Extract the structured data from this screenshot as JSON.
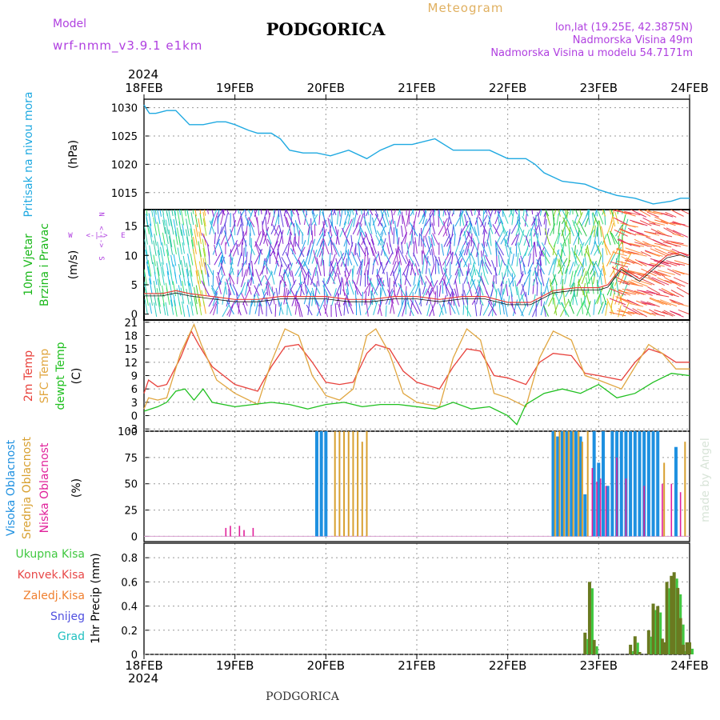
{
  "header": {
    "model_label": "Model",
    "model_name": "wrf-nmm_v3.9.1  e1km",
    "title": "PODGORICA",
    "meteogram": "Meteogram",
    "lonlat": "lon,lat (19.25E, 42.3875N)",
    "elevation": "Nadmorska Visina 49m",
    "model_elevation": "Nadmorska Visina u modelu 54.7171m",
    "year_top": "2024",
    "year_bottom": "2024",
    "footer": "PODGORICA",
    "watermark": "made by Angel"
  },
  "colors": {
    "pressure": "#1fa9e1",
    "wind_label": "#1bb81b",
    "temp2m": "#e8423c",
    "sfc": "#e0a640",
    "dew": "#20c020",
    "high_cloud": "#1e90e0",
    "mid_cloud": "#d8a030",
    "low_cloud": "#e0209a",
    "compass": "#b040e0",
    "total_rain": "#40c840",
    "conv_rain": "#e84848",
    "frz_rain": "#f08030",
    "snow": "#5050e0",
    "hail": "#20c0c0",
    "precip_bar": "#6a7a20"
  },
  "compass": {
    "n": "N",
    "s": "S",
    "w": "W",
    "e": "E",
    "arrows": "<-|->"
  },
  "chart_data": [
    {
      "type": "line",
      "panel": "pressure",
      "ylabel_left": "Pritisak na nivou mora",
      "ylabel_unit": "(hPa)",
      "ylim": [
        1012,
        1031.5
      ],
      "yticks": [
        1015,
        1020,
        1025,
        1030
      ],
      "xticks": [
        "18FEB",
        "19FEB",
        "20FEB",
        "21FEB",
        "22FEB",
        "23FEB",
        "24FEB"
      ],
      "x": [
        0,
        0.06,
        0.13,
        0.25,
        0.35,
        0.5,
        0.65,
        0.8,
        0.9,
        1.0,
        1.15,
        1.25,
        1.4,
        1.5,
        1.6,
        1.75,
        1.9,
        2.05,
        2.25,
        2.45,
        2.6,
        2.75,
        2.95,
        3.2,
        3.4,
        3.6,
        3.8,
        4.0,
        4.2,
        4.3,
        4.4,
        4.6,
        4.85,
        5.0,
        5.2,
        5.4,
        5.6,
        5.8,
        5.9,
        6.0
      ],
      "values": [
        1030.5,
        1029,
        1029,
        1029.5,
        1029.5,
        1027,
        1027,
        1027.5,
        1027.5,
        1027,
        1026,
        1025.5,
        1025.5,
        1024.5,
        1022.5,
        1022,
        1022,
        1021.5,
        1022.5,
        1021,
        1022.5,
        1023.5,
        1023.5,
        1024.5,
        1022.5,
        1022.5,
        1022.5,
        1021,
        1021,
        1020,
        1018.5,
        1017,
        1016.5,
        1015.5,
        1014.5,
        1014,
        1013,
        1013.5,
        1014,
        1014
      ]
    },
    {
      "type": "line",
      "panel": "wind",
      "ylabel_left": [
        "10m Vjetar",
        "Brzina i Pravac"
      ],
      "ylabel_unit": "(m/s)",
      "ylim": [
        -1,
        17.8
      ],
      "yticks": [
        0,
        5,
        10,
        15
      ],
      "x": [
        0,
        0.2,
        0.35,
        0.5,
        0.75,
        1.0,
        1.25,
        1.5,
        1.75,
        2.0,
        2.25,
        2.5,
        2.75,
        3.0,
        3.25,
        3.5,
        3.75,
        4.0,
        4.25,
        4.5,
        4.75,
        5.0,
        5.1,
        5.25,
        5.45,
        5.6,
        5.75,
        5.9,
        6.0
      ],
      "values": [
        3.5,
        3.5,
        4,
        3.5,
        3,
        2.5,
        2.5,
        3,
        3,
        3,
        2.5,
        2.5,
        3,
        3,
        2.5,
        3,
        3,
        2,
        2,
        4,
        4.5,
        4.5,
        5,
        8,
        6,
        8,
        10,
        10.5,
        10
      ]
    },
    {
      "type": "line",
      "panel": "temperature",
      "ylabel_left": [
        "2m Temp",
        "SFC Temp",
        "dewpt Temp"
      ],
      "ylabel_unit": "(C)",
      "ylim": [
        -3.5,
        21.5
      ],
      "yticks": [
        -3,
        0,
        3,
        6,
        9,
        12,
        15,
        18,
        21
      ],
      "series": [
        {
          "name": "2m Temp",
          "x": [
            0,
            0.05,
            0.15,
            0.25,
            0.4,
            0.52,
            0.6,
            0.75,
            1.0,
            1.25,
            1.4,
            1.55,
            1.7,
            1.85,
            2.0,
            2.15,
            2.3,
            2.45,
            2.55,
            2.7,
            2.85,
            3.0,
            3.25,
            3.4,
            3.55,
            3.7,
            3.85,
            4.0,
            4.2,
            4.35,
            4.5,
            4.7,
            4.85,
            5.0,
            5.25,
            5.4,
            5.55,
            5.7,
            5.85,
            6.0
          ],
          "values": [
            5,
            8,
            6.5,
            7,
            13,
            19,
            16,
            11,
            7,
            5.5,
            11,
            15.5,
            16,
            12,
            7.5,
            7,
            7.5,
            14,
            16,
            15,
            10,
            7.5,
            6,
            11,
            15,
            14.5,
            9,
            8.5,
            7,
            12,
            14,
            13.5,
            9.5,
            9,
            8,
            12,
            15,
            14,
            12,
            12
          ]
        },
        {
          "name": "SFC Temp",
          "x": [
            0,
            0.05,
            0.15,
            0.25,
            0.4,
            0.55,
            0.63,
            0.8,
            1.0,
            1.25,
            1.4,
            1.55,
            1.7,
            1.85,
            2.0,
            2.15,
            2.3,
            2.45,
            2.55,
            2.7,
            2.85,
            3.0,
            3.25,
            3.4,
            3.55,
            3.7,
            3.85,
            4.0,
            4.2,
            4.35,
            4.5,
            4.7,
            4.85,
            5.0,
            5.25,
            5.4,
            5.55,
            5.7,
            5.85,
            6.0
          ],
          "values": [
            1.5,
            4,
            3.5,
            4,
            14,
            20.5,
            16,
            8,
            5,
            2.5,
            12,
            19.5,
            18,
            9,
            4.5,
            3.5,
            6,
            18,
            19.5,
            14,
            5,
            3,
            2,
            13,
            19.5,
            17,
            5,
            4,
            2,
            13,
            19,
            17,
            9,
            8,
            6,
            11,
            16,
            14,
            10.5,
            10.5
          ]
        },
        {
          "name": "dewpt Temp",
          "x": [
            0,
            0.15,
            0.25,
            0.35,
            0.45,
            0.55,
            0.65,
            0.75,
            1.0,
            1.2,
            1.4,
            1.6,
            1.8,
            2.0,
            2.2,
            2.4,
            2.6,
            2.8,
            3.0,
            3.2,
            3.4,
            3.6,
            3.8,
            4.0,
            4.1,
            4.2,
            4.4,
            4.6,
            4.8,
            5.0,
            5.2,
            5.4,
            5.6,
            5.8,
            6.0
          ],
          "values": [
            1,
            2,
            3,
            5.5,
            6,
            3.5,
            6,
            3,
            2,
            2.5,
            3,
            2.5,
            1.5,
            2.5,
            3,
            2,
            2.5,
            2.5,
            2,
            1.5,
            3,
            1.5,
            2,
            0,
            -2,
            2.5,
            5,
            6,
            5,
            7,
            4,
            5,
            7.5,
            9.5,
            9
          ]
        }
      ]
    },
    {
      "type": "bar",
      "panel": "cloud",
      "ylabel_left": [
        "Visoka Oblacnost",
        "Srednja Oblacnost",
        "Niska Oblacnost"
      ],
      "ylabel_unit": "(%)",
      "ylim": [
        -5,
        100
      ],
      "yticks": [
        0,
        25,
        50,
        75,
        100
      ],
      "series": [
        {
          "name": "Visoka Oblacnost",
          "x": [
            1.9,
            1.95,
            2.0,
            4.5,
            4.55,
            4.6,
            4.65,
            4.7,
            4.75,
            4.8,
            4.85,
            4.95,
            5.0,
            5.05,
            5.1,
            5.15,
            5.2,
            5.25,
            5.3,
            5.35,
            5.4,
            5.45,
            5.5,
            5.55,
            5.6,
            5.65,
            5.85
          ],
          "values": [
            100,
            100,
            100,
            100,
            95,
            100,
            100,
            100,
            100,
            95,
            40,
            100,
            70,
            100,
            48,
            100,
            100,
            100,
            100,
            100,
            100,
            100,
            100,
            100,
            100,
            100,
            85
          ]
        },
        {
          "name": "Srednja Oblacnost",
          "x": [
            2.1,
            2.15,
            2.2,
            2.25,
            2.3,
            2.35,
            2.4,
            2.45,
            4.52,
            4.57,
            4.62,
            4.67,
            4.72,
            4.78,
            4.82,
            4.88,
            5.72,
            5.95
          ],
          "values": [
            100,
            100,
            100,
            100,
            100,
            100,
            90,
            100,
            100,
            100,
            100,
            100,
            100,
            100,
            90,
            100,
            70,
            90
          ]
        },
        {
          "name": "Niska Oblacnost",
          "x": [
            0.9,
            0.95,
            1.05,
            1.1,
            1.2,
            4.93,
            4.98,
            5.02,
            5.08,
            5.2,
            5.3,
            5.5,
            5.7,
            5.8,
            5.9
          ],
          "values": [
            8,
            10,
            10,
            6,
            8,
            65,
            52,
            55,
            48,
            75,
            55,
            48,
            50,
            50,
            42
          ]
        }
      ]
    },
    {
      "type": "bar",
      "panel": "precipitation",
      "legend_left": [
        "Ukupna Kisa",
        "Konvek.Kisa",
        "Zaledj.Kisa",
        "Snijeg",
        "Grad"
      ],
      "ylabel_unit": "1hr Precip (mm)",
      "ylim": [
        0,
        0.92
      ],
      "yticks": [
        0,
        0.2,
        0.4,
        0.6,
        0.8
      ],
      "x": [
        4.85,
        4.9,
        4.95,
        5.35,
        5.4,
        5.45,
        5.55,
        5.6,
        5.65,
        5.7,
        5.72,
        5.75,
        5.8,
        5.83,
        5.87,
        5.9,
        5.93,
        5.97,
        6.0
      ],
      "values": [
        0.18,
        0.6,
        0.12,
        0.08,
        0.15,
        0.02,
        0.2,
        0.42,
        0.4,
        0.13,
        0.1,
        0.6,
        0.65,
        0.68,
        0.55,
        0.3,
        0.08,
        0.1,
        0.1
      ]
    }
  ]
}
